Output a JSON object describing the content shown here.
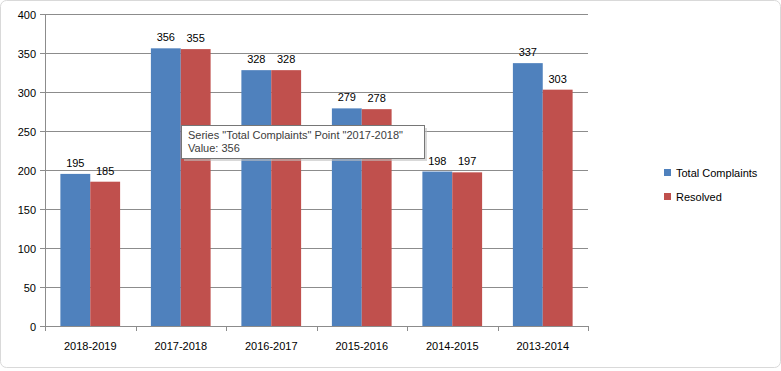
{
  "chart_data": {
    "type": "bar",
    "categories": [
      "2018-2019",
      "2017-2018",
      "2016-2017",
      "2015-2016",
      "2014-2015",
      "2013-2014"
    ],
    "series": [
      {
        "name": "Total Complaints",
        "color": "#4f81bd",
        "values": [
          195,
          356,
          328,
          279,
          198,
          337
        ]
      },
      {
        "name": "Resolved",
        "color": "#c0504d",
        "values": [
          185,
          355,
          328,
          278,
          197,
          303
        ]
      }
    ],
    "ylim": [
      0,
      400
    ],
    "yticks": [
      0,
      50,
      100,
      150,
      200,
      250,
      300,
      350,
      400
    ],
    "grid": true,
    "legend": "right",
    "data_labels": true,
    "annotations": [
      "Series \"Total Complaints\" Point \"2017-2018\"",
      "Value: 356"
    ]
  }
}
